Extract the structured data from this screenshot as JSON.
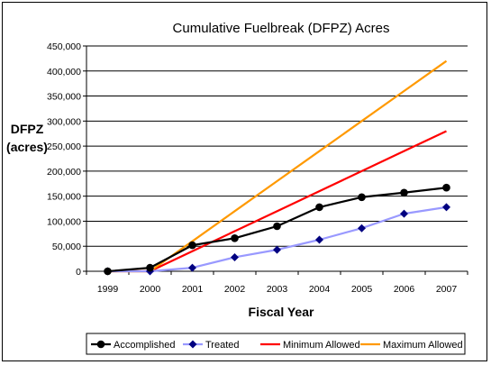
{
  "chart_data": {
    "type": "line",
    "title": "Cumulative Fuelbreak (DFPZ) Acres",
    "xlabel": "Fiscal Year",
    "ylabel_line1": "DFPZ",
    "ylabel_line2": "(acres)",
    "categories": [
      "1999",
      "2000",
      "2001",
      "2002",
      "2003",
      "2004",
      "2005",
      "2006",
      "2007"
    ],
    "ylim": [
      0,
      450000
    ],
    "yticks": [
      "0",
      "50,000",
      "100,000",
      "150,000",
      "200,000",
      "250,000",
      "300,000",
      "350,000",
      "400,000",
      "450,000"
    ],
    "grid": "horizontal",
    "legend_position": "bottom",
    "series": [
      {
        "name": "Accomplished",
        "color": "#000000",
        "marker": "circle",
        "values": [
          0,
          7000,
          52000,
          66000,
          90000,
          128000,
          148000,
          157000,
          167000
        ]
      },
      {
        "name": "Treated",
        "color": "#9999ff",
        "marker": "diamond",
        "marker_color": "#000080",
        "values": [
          0,
          0,
          7000,
          28000,
          43000,
          63000,
          86000,
          115000,
          128000
        ]
      },
      {
        "name": "Minimum Allowed",
        "color": "#ff0000",
        "marker": "none",
        "values": [
          0,
          0,
          40000,
          80000,
          120000,
          160000,
          200000,
          240000,
          280000
        ]
      },
      {
        "name": "Maximum Allowed",
        "color": "#ff9900",
        "marker": "none",
        "values": [
          0,
          0,
          60000,
          120000,
          180000,
          240000,
          300000,
          360000,
          420000
        ]
      }
    ]
  }
}
